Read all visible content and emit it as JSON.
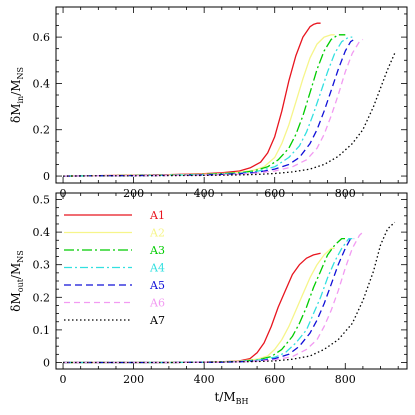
{
  "chart_data": [
    {
      "type": "line",
      "ylabel_main": "δM",
      "ylabel_sub": "in",
      "ylabel_den": "/M",
      "ylabel_den_sub": "NS",
      "xlim": [
        -20,
        975
      ],
      "ylim": [
        -0.03,
        0.73
      ],
      "xticks": [
        "0",
        "200",
        "400",
        "600",
        "800"
      ],
      "yticks": [
        "0",
        "0.2",
        "0.4",
        "0.6"
      ],
      "ytick_values": [
        0,
        0.2,
        0.4,
        0.6
      ],
      "xtick_values": [
        0,
        200,
        400,
        600,
        800
      ],
      "grid": false,
      "series": [
        {
          "name": "A1",
          "color": "#e8151f",
          "dash": "",
          "x": [
            0,
            100,
            200,
            300,
            400,
            450,
            500,
            530,
            560,
            580,
            600,
            620,
            640,
            660,
            680,
            700,
            710,
            720,
            730
          ],
          "y": [
            0,
            0.002,
            0.004,
            0.006,
            0.01,
            0.014,
            0.022,
            0.035,
            0.06,
            0.1,
            0.17,
            0.28,
            0.41,
            0.52,
            0.6,
            0.645,
            0.655,
            0.66,
            0.66
          ]
        },
        {
          "name": "A2",
          "color": "#f6f58a",
          "dash": "",
          "x": [
            0,
            100,
            200,
            300,
            400,
            450,
            500,
            540,
            570,
            600,
            620,
            640,
            660,
            680,
            700,
            720,
            740,
            760,
            770
          ],
          "y": [
            0,
            0.002,
            0.003,
            0.005,
            0.008,
            0.011,
            0.016,
            0.025,
            0.04,
            0.08,
            0.14,
            0.22,
            0.32,
            0.42,
            0.51,
            0.57,
            0.6,
            0.61,
            0.61
          ]
        },
        {
          "name": "A3",
          "color": "#00cc00",
          "dash": "10 3 2 3",
          "x": [
            0,
            100,
            200,
            300,
            400,
            450,
            500,
            540,
            580,
            610,
            640,
            660,
            680,
            700,
            720,
            740,
            760,
            780,
            800
          ],
          "y": [
            0,
            0.001,
            0.003,
            0.004,
            0.007,
            0.01,
            0.014,
            0.022,
            0.04,
            0.07,
            0.12,
            0.18,
            0.26,
            0.36,
            0.46,
            0.54,
            0.59,
            0.61,
            0.61
          ]
        },
        {
          "name": "A4",
          "color": "#33e0e0",
          "dash": "8 3 2 3",
          "x": [
            0,
            100,
            200,
            300,
            400,
            450,
            500,
            550,
            600,
            640,
            670,
            690,
            710,
            730,
            750,
            770,
            790,
            810,
            820
          ],
          "y": [
            0,
            0.001,
            0.002,
            0.004,
            0.006,
            0.008,
            0.012,
            0.02,
            0.04,
            0.08,
            0.13,
            0.19,
            0.27,
            0.36,
            0.45,
            0.53,
            0.58,
            0.6,
            0.6
          ]
        },
        {
          "name": "A5",
          "color": "#1010d8",
          "dash": "7 4",
          "x": [
            0,
            100,
            200,
            300,
            400,
            450,
            500,
            550,
            600,
            640,
            670,
            700,
            720,
            740,
            760,
            780,
            800,
            815,
            825
          ],
          "y": [
            0,
            0.001,
            0.002,
            0.003,
            0.005,
            0.007,
            0.01,
            0.016,
            0.03,
            0.05,
            0.08,
            0.14,
            0.2,
            0.28,
            0.37,
            0.46,
            0.54,
            0.58,
            0.59
          ]
        },
        {
          "name": "A6",
          "color": "#f29af2",
          "dash": "6 4",
          "x": [
            0,
            100,
            200,
            300,
            400,
            450,
            500,
            550,
            600,
            650,
            690,
            720,
            740,
            760,
            780,
            800,
            820,
            840,
            850
          ],
          "y": [
            0,
            0.001,
            0.002,
            0.003,
            0.004,
            0.006,
            0.008,
            0.013,
            0.022,
            0.04,
            0.07,
            0.12,
            0.18,
            0.26,
            0.35,
            0.45,
            0.53,
            0.58,
            0.59
          ]
        },
        {
          "name": "A7",
          "color": "#000000",
          "dash": "1.5 2.5",
          "x": [
            0,
            100,
            200,
            300,
            400,
            500,
            550,
            600,
            650,
            700,
            740,
            780,
            820,
            850,
            880,
            900,
            920,
            940
          ],
          "y": [
            0,
            0.001,
            0.001,
            0.002,
            0.003,
            0.005,
            0.007,
            0.011,
            0.018,
            0.03,
            0.05,
            0.085,
            0.14,
            0.2,
            0.3,
            0.38,
            0.46,
            0.53
          ]
        }
      ]
    },
    {
      "type": "line",
      "xlabel_main": "t/M",
      "xlabel_sub": "BH",
      "ylabel_main": "δM",
      "ylabel_sub": "out",
      "ylabel_den": "/M",
      "ylabel_den_sub": "NS",
      "xlim": [
        -20,
        975
      ],
      "ylim": [
        -0.02,
        0.52
      ],
      "xticks": [
        "0",
        "200",
        "400",
        "600",
        "800"
      ],
      "xtick_values": [
        0,
        200,
        400,
        600,
        800
      ],
      "yticks": [
        "0",
        "0.1",
        "0.2",
        "0.3",
        "0.4",
        "0.5"
      ],
      "ytick_values": [
        0,
        0.1,
        0.2,
        0.3,
        0.4,
        0.5
      ],
      "grid": false,
      "legend": "top-left",
      "series": [
        {
          "name": "A1",
          "color": "#e8151f",
          "dash": "",
          "x": [
            0,
            100,
            200,
            300,
            400,
            450,
            500,
            530,
            550,
            570,
            590,
            610,
            630,
            650,
            670,
            690,
            710,
            730
          ],
          "y": [
            0,
            0,
            0,
            0,
            0.001,
            0.002,
            0.005,
            0.012,
            0.03,
            0.06,
            0.11,
            0.17,
            0.22,
            0.27,
            0.3,
            0.32,
            0.33,
            0.335
          ]
        },
        {
          "name": "A2",
          "color": "#f6f58a",
          "dash": "",
          "x": [
            0,
            100,
            200,
            300,
            400,
            450,
            500,
            550,
            580,
            600,
            620,
            640,
            660,
            680,
            700,
            720,
            740,
            760,
            770
          ],
          "y": [
            0,
            0,
            0,
            0,
            0.001,
            0.002,
            0.004,
            0.01,
            0.02,
            0.04,
            0.07,
            0.11,
            0.16,
            0.21,
            0.26,
            0.3,
            0.33,
            0.35,
            0.35
          ]
        },
        {
          "name": "A3",
          "color": "#00cc00",
          "dash": "10 3 2 3",
          "x": [
            0,
            100,
            200,
            300,
            400,
            450,
            500,
            550,
            590,
            620,
            650,
            670,
            690,
            710,
            730,
            750,
            770,
            790,
            800
          ],
          "y": [
            0,
            0,
            0,
            0,
            0.001,
            0.002,
            0.003,
            0.008,
            0.018,
            0.04,
            0.08,
            0.12,
            0.17,
            0.23,
            0.28,
            0.33,
            0.36,
            0.38,
            0.38
          ]
        },
        {
          "name": "A4",
          "color": "#33e0e0",
          "dash": "8 3 2 3",
          "x": [
            0,
            100,
            200,
            300,
            400,
            450,
            500,
            550,
            600,
            630,
            660,
            690,
            710,
            730,
            750,
            770,
            790,
            810,
            820
          ],
          "y": [
            0,
            0,
            0,
            0,
            0.001,
            0.001,
            0.003,
            0.007,
            0.016,
            0.03,
            0.06,
            0.1,
            0.15,
            0.2,
            0.26,
            0.31,
            0.35,
            0.38,
            0.38
          ]
        },
        {
          "name": "A5",
          "color": "#1010d8",
          "dash": "7 4",
          "x": [
            0,
            100,
            200,
            300,
            400,
            450,
            500,
            550,
            600,
            640,
            670,
            700,
            720,
            740,
            760,
            780,
            800,
            815,
            825
          ],
          "y": [
            0,
            0,
            0,
            0,
            0.001,
            0.001,
            0.002,
            0.005,
            0.012,
            0.025,
            0.05,
            0.09,
            0.13,
            0.18,
            0.24,
            0.3,
            0.35,
            0.38,
            0.38
          ]
        },
        {
          "name": "A6",
          "color": "#f29af2",
          "dash": "6 4",
          "x": [
            0,
            100,
            200,
            300,
            400,
            450,
            500,
            550,
            600,
            650,
            690,
            720,
            740,
            760,
            780,
            800,
            820,
            840,
            850
          ],
          "y": [
            0,
            0,
            0,
            0,
            0.001,
            0.001,
            0.002,
            0.004,
            0.008,
            0.018,
            0.04,
            0.07,
            0.11,
            0.16,
            0.22,
            0.29,
            0.35,
            0.39,
            0.4
          ]
        },
        {
          "name": "A7",
          "color": "#000000",
          "dash": "1.5 2.5",
          "x": [
            0,
            100,
            200,
            300,
            400,
            500,
            550,
            600,
            650,
            700,
            740,
            780,
            820,
            850,
            880,
            900,
            920,
            940
          ],
          "y": [
            0,
            0,
            0,
            0,
            0.001,
            0.002,
            0.003,
            0.005,
            0.01,
            0.02,
            0.04,
            0.07,
            0.12,
            0.19,
            0.28,
            0.36,
            0.41,
            0.43
          ]
        }
      ]
    }
  ]
}
